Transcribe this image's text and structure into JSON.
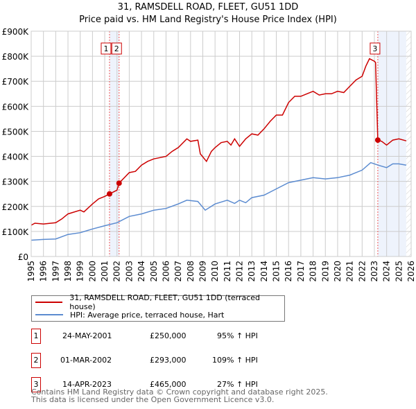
{
  "title": "31, RAMSDELL ROAD, FLEET, GU51 1DD",
  "subtitle": "Price paid vs. HM Land Registry's House Price Index (HPI)",
  "chart_data": {
    "type": "line",
    "xlim": [
      1995,
      2026
    ],
    "ylim": [
      0,
      900000
    ],
    "y_ticks": [
      {
        "v": 0,
        "label": "£0"
      },
      {
        "v": 100000,
        "label": "£100K"
      },
      {
        "v": 200000,
        "label": "£200K"
      },
      {
        "v": 300000,
        "label": "£300K"
      },
      {
        "v": 400000,
        "label": "£400K"
      },
      {
        "v": 500000,
        "label": "£500K"
      },
      {
        "v": 600000,
        "label": "£600K"
      },
      {
        "v": 700000,
        "label": "£700K"
      },
      {
        "v": 800000,
        "label": "£800K"
      },
      {
        "v": 900000,
        "label": "£900K"
      }
    ],
    "x_ticks": [
      "1995",
      "1996",
      "1997",
      "1998",
      "1999",
      "2000",
      "2001",
      "2002",
      "2003",
      "2004",
      "2005",
      "2006",
      "2007",
      "2008",
      "2009",
      "2010",
      "2011",
      "2012",
      "2013",
      "2014",
      "2015",
      "2016",
      "2017",
      "2018",
      "2019",
      "2020",
      "2021",
      "2022",
      "2023",
      "2024",
      "2025",
      "2026"
    ],
    "grid": true,
    "series": [
      {
        "name": "31, RAMSDELL ROAD, FLEET, GU51 1DD (terraced house)",
        "color": "#cc0000",
        "x": [
          1995,
          1995.3,
          1996,
          1997,
          1997.5,
          1998,
          1999,
          1999.3,
          2000,
          2000.5,
          2001,
          2001.4,
          2002,
          2002.17,
          2003,
          2003.5,
          2004,
          2004.5,
          2005,
          2006,
          2006.5,
          2007,
          2007.7,
          2008,
          2008.6,
          2008.8,
          2009.3,
          2009.7,
          2010,
          2010.5,
          2011,
          2011.3,
          2011.6,
          2012,
          2012.5,
          2013,
          2013.5,
          2014,
          2014.5,
          2015,
          2015.5,
          2016,
          2016.5,
          2017,
          2017.5,
          2018,
          2018.5,
          2019,
          2019.5,
          2020,
          2020.5,
          2021,
          2021.5,
          2022,
          2022.3,
          2022.6,
          2023,
          2023.1,
          2023.28,
          2023.6,
          2024,
          2024.5,
          2025,
          2025.6
        ],
        "y": [
          125000,
          133000,
          130000,
          135000,
          150000,
          170000,
          185000,
          178000,
          210000,
          230000,
          240000,
          250000,
          265000,
          293000,
          335000,
          340000,
          365000,
          380000,
          390000,
          400000,
          420000,
          435000,
          470000,
          460000,
          465000,
          410000,
          380000,
          420000,
          435000,
          455000,
          460000,
          445000,
          470000,
          440000,
          470000,
          490000,
          485000,
          510000,
          540000,
          565000,
          565000,
          615000,
          640000,
          640000,
          650000,
          660000,
          645000,
          650000,
          650000,
          660000,
          655000,
          680000,
          705000,
          720000,
          760000,
          790000,
          780000,
          775000,
          465000,
          460000,
          445000,
          465000,
          470000,
          462000
        ]
      },
      {
        "name": "HPI: Average price, terraced house, Hart",
        "color": "#5b8bd0",
        "x": [
          1995,
          1996,
          1997,
          1998,
          1999,
          2000,
          2001,
          2002,
          2003,
          2004,
          2005,
          2006,
          2007,
          2007.7,
          2008.6,
          2009.2,
          2010,
          2011,
          2011.6,
          2012,
          2012.5,
          2013,
          2014,
          2015,
          2016,
          2017,
          2018,
          2019,
          2020,
          2021,
          2022,
          2022.7,
          2023.3,
          2024,
          2024.5,
          2025,
          2025.6
        ],
        "y": [
          65000,
          68000,
          70000,
          88000,
          95000,
          110000,
          123000,
          135000,
          160000,
          170000,
          185000,
          192000,
          210000,
          225000,
          220000,
          185000,
          210000,
          225000,
          212000,
          225000,
          215000,
          235000,
          245000,
          270000,
          295000,
          305000,
          315000,
          310000,
          315000,
          325000,
          345000,
          375000,
          365000,
          355000,
          370000,
          370000,
          365000
        ]
      }
    ],
    "sales": [
      {
        "label": "1",
        "x": 2001.39,
        "y": 250000
      },
      {
        "label": "2",
        "x": 2002.17,
        "y": 293000
      },
      {
        "label": "3",
        "x": 2023.28,
        "y": 465000
      }
    ],
    "legend_position": "bottom"
  },
  "legend": {
    "property": "31, RAMSDELL ROAD, FLEET, GU51 1DD (terraced house)",
    "hpi": "HPI: Average price, terraced house, Hart"
  },
  "transactions": [
    {
      "num": "1",
      "date": "24-MAY-2001",
      "price": "£250,000",
      "hpi": "95% ↑ HPI"
    },
    {
      "num": "2",
      "date": "01-MAR-2002",
      "price": "£293,000",
      "hpi": "109% ↑ HPI"
    },
    {
      "num": "3",
      "date": "14-APR-2023",
      "price": "£465,000",
      "hpi": "27% ↑ HPI"
    }
  ],
  "footer": {
    "line1": "Contains HM Land Registry data © Crown copyright and database right 2025.",
    "line2": "This data is licensed under the Open Government Licence v3.0."
  }
}
